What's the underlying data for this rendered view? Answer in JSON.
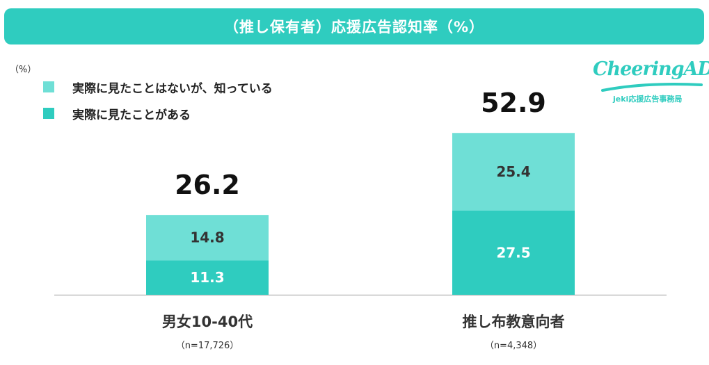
{
  "chart_data": {
    "type": "bar",
    "stacked": true,
    "title": "（推し保有者）応援広告認知率（%）",
    "unit": "（%）",
    "categories": [
      "男女10-40代",
      "推し布教意向者"
    ],
    "sample_sizes": [
      "（n=17,726）",
      "（n=4,348）"
    ],
    "series": [
      {
        "name": "実際に見たことがある",
        "values": [
          11.3,
          27.5
        ],
        "color": "#2fccbf"
      },
      {
        "name": "実際に見たことはないが、知っている",
        "values": [
          14.8,
          25.4
        ],
        "color": "#6fdfd6"
      }
    ],
    "totals": [
      26.2,
      52.9
    ],
    "ylim": [
      0,
      60
    ],
    "grid": false,
    "legend_position": "top-left"
  },
  "logo": {
    "name": "CheeringAD",
    "subtitle": "jeki応援広告事務局",
    "color": "#2fccbf"
  },
  "colors": {
    "title_bg": "#2fccbf",
    "bottom_label_dark": "#333333",
    "top_label_dark": "#333333"
  }
}
